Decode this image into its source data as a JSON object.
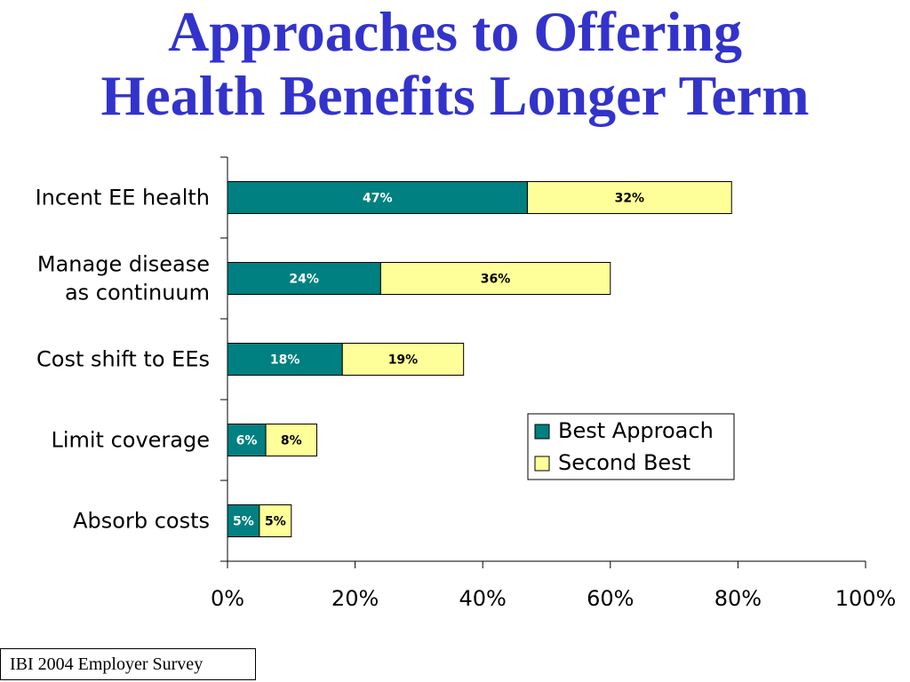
{
  "title": {
    "line1": "Approaches to Offering",
    "line2": "Health Benefits Longer Term"
  },
  "source": "IBI 2004 Employer Survey",
  "colors": {
    "title": "#3333cc",
    "best": "#008080",
    "second": "#ffff99"
  },
  "chart_data": {
    "type": "bar",
    "orientation": "horizontal",
    "stacked": true,
    "categories": [
      "Incent EE health",
      "Manage disease as continuum",
      "Cost shift to EEs",
      "Limit coverage",
      "Absorb costs"
    ],
    "category_lines": [
      [
        "Incent EE health"
      ],
      [
        "Manage disease",
        "as continuum"
      ],
      [
        "Cost shift to EEs"
      ],
      [
        "Limit coverage"
      ],
      [
        "Absorb costs"
      ]
    ],
    "series": [
      {
        "name": "Best Approach",
        "values": [
          47,
          24,
          18,
          6,
          5
        ],
        "labels": [
          "47%",
          "24%",
          "18%",
          "6%",
          "5%"
        ]
      },
      {
        "name": "Second Best",
        "values": [
          32,
          36,
          19,
          8,
          5
        ],
        "labels": [
          "32%",
          "36%",
          "19%",
          "8%",
          "5%"
        ]
      }
    ],
    "xlim": [
      0,
      100
    ],
    "xticks": [
      0,
      20,
      40,
      60,
      80,
      100
    ],
    "xtick_labels": [
      "0%",
      "20%",
      "40%",
      "60%",
      "80%",
      "100%"
    ],
    "grid": false,
    "legend_position": "right"
  }
}
